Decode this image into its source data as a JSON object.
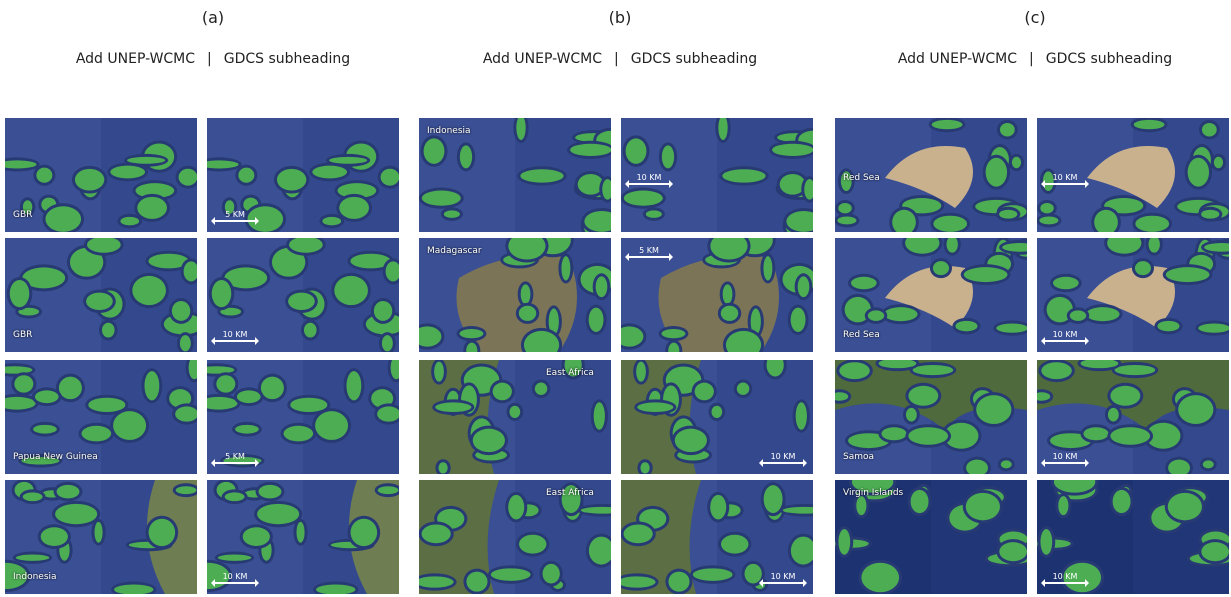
{
  "panels": [
    {
      "label": "(a)",
      "subheading": {
        "left": "Add UNEP-WCMC",
        "separator": "|",
        "right": "GDCS subheading"
      },
      "rows": [
        {
          "region": "GBR",
          "scale": "5 KM"
        },
        {
          "region": "GBR",
          "scale": "10 KM"
        },
        {
          "region": "Papua New Guinea",
          "scale": "5 KM"
        },
        {
          "region": "Indonesia",
          "scale": "10 KM"
        }
      ]
    },
    {
      "label": "(b)",
      "subheading": {
        "left": "Add UNEP-WCMC",
        "separator": "|",
        "right": "GDCS subheading"
      },
      "rows": [
        {
          "region": "Indonesia",
          "scale": "10 KM"
        },
        {
          "region": "Madagascar",
          "scale": "5 KM"
        },
        {
          "region": "East Africa",
          "scale": "10 KM"
        },
        {
          "region": "East Africa",
          "scale": "10 KM"
        }
      ]
    },
    {
      "label": "(c)",
      "subheading": {
        "left": "Add UNEP-WCMC",
        "separator": "|",
        "right": "GDCS subheading"
      },
      "rows": [
        {
          "region": "Red Sea",
          "scale": "10 KM"
        },
        {
          "region": "Red Sea",
          "scale": "10 KM"
        },
        {
          "region": "Samoa",
          "scale": "10 KM"
        },
        {
          "region": "Virgin Islands",
          "scale": "10 KM"
        }
      ]
    }
  ]
}
